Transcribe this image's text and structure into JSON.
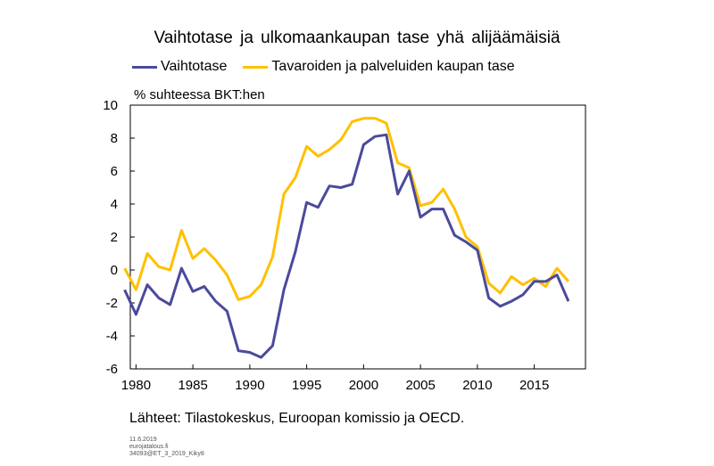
{
  "chart_data": {
    "type": "line",
    "title": "Vaihtotase ja ulkomaankaupan tase yhä alijäämäisiä",
    "ylabel": "% suhteessa BKT:hen",
    "xlabel": "",
    "xlim": [
      1979.5,
      2019.5
    ],
    "ylim": [
      -6,
      10
    ],
    "yticks": [
      10,
      8,
      6,
      4,
      2,
      0,
      -2,
      -4,
      -6
    ],
    "xticks": [
      "1980",
      "1985",
      "1990",
      "1995",
      "2000",
      "2005",
      "2010",
      "2015"
    ],
    "x": [
      1979,
      1980,
      1981,
      1982,
      1983,
      1984,
      1985,
      1986,
      1987,
      1988,
      1989,
      1990,
      1991,
      1992,
      1993,
      1994,
      1995,
      1996,
      1997,
      1998,
      1999,
      2000,
      2001,
      2002,
      2003,
      2004,
      2005,
      2006,
      2007,
      2008,
      2009,
      2010,
      2011,
      2012,
      2013,
      2014,
      2015,
      2016,
      2017,
      2018
    ],
    "series": [
      {
        "name": "Vaihtotase",
        "color": "#4a4a9c",
        "values": [
          -1.2,
          -2.7,
          -0.9,
          -1.7,
          -2.1,
          0.1,
          -1.3,
          -1.0,
          -1.9,
          -2.5,
          -4.9,
          -5.0,
          -5.3,
          -4.6,
          -1.2,
          1.1,
          4.1,
          3.8,
          5.1,
          5.0,
          5.2,
          7.6,
          8.1,
          8.2,
          4.6,
          6.0,
          3.2,
          3.7,
          3.7,
          2.1,
          1.7,
          1.2,
          -1.7,
          -2.2,
          -1.9,
          -1.5,
          -0.7,
          -0.7,
          -0.3,
          -1.9
        ]
      },
      {
        "name": "Tavaroiden ja palveluiden kaupan tase",
        "color": "#ffc000",
        "values": [
          0.1,
          -1.2,
          1.0,
          0.2,
          0.0,
          2.4,
          0.7,
          1.3,
          0.6,
          -0.3,
          -1.8,
          -1.6,
          -0.9,
          0.8,
          4.6,
          5.6,
          7.5,
          6.9,
          7.3,
          7.9,
          9.0,
          9.2,
          9.2,
          8.9,
          6.5,
          6.2,
          3.9,
          4.1,
          4.9,
          3.7,
          2.0,
          1.4,
          -0.8,
          -1.4,
          -0.4,
          -0.9,
          -0.5,
          -1.0,
          0.1,
          -0.7
        ]
      }
    ],
    "grid": false,
    "legend_position": "top"
  },
  "footer": {
    "source": "Lähteet: Tilastokeskus, Euroopan komissio ja OECD.",
    "date": "11.6.2019",
    "site": "eurojatalous.fi",
    "code": "34093@ET_3_2019_Kiky8"
  }
}
